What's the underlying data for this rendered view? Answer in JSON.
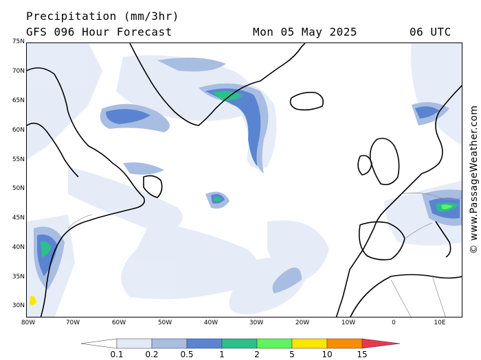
{
  "header": {
    "title": "Precipitation (mm/3hr)",
    "subtitle": "GFS 096 Hour Forecast",
    "date": "Mon 05 May 2025",
    "time": "06 UTC"
  },
  "axes": {
    "lat_labels": [
      "75N",
      "70N",
      "65N",
      "60N",
      "55N",
      "50N",
      "45N",
      "40N",
      "35N",
      "30N"
    ],
    "lon_labels": [
      "80W",
      "70W",
      "60W",
      "50W",
      "40W",
      "30W",
      "20W",
      "10W",
      "0",
      "10E"
    ]
  },
  "credit": "© www.PassageWeather.com",
  "legend": {
    "labels": [
      "0.1",
      "0.2",
      "0.5",
      "1",
      "2",
      "5",
      "10",
      "15"
    ],
    "colors": [
      "#ffffff",
      "#e3eaf7",
      "#a8bde2",
      "#5b84d0",
      "#2bbf8a",
      "#5cf55c",
      "#ffe600",
      "#ff8c00",
      "#e8384f"
    ]
  }
}
